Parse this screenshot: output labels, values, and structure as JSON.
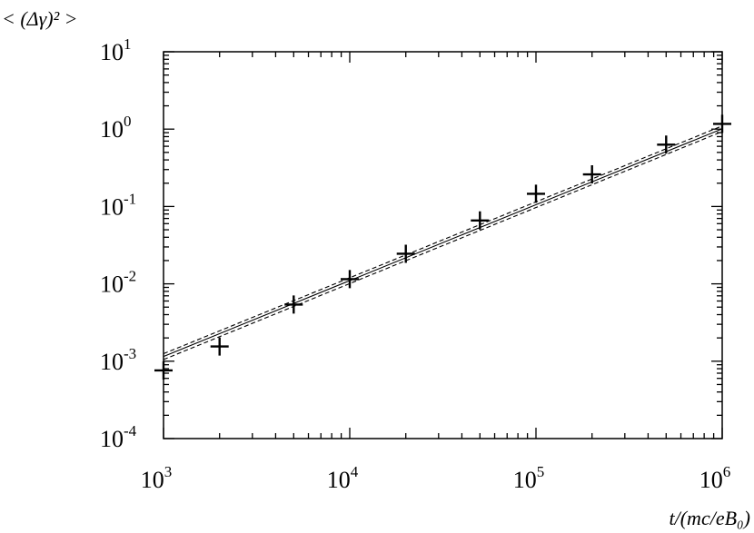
{
  "chart_data": {
    "type": "scatter",
    "ylabel": "< (Δγ)² >",
    "xlabel": "t/(mc/eB₀)",
    "log_x": true,
    "log_y": true,
    "xlim": [
      1000,
      1000000
    ],
    "ylim": [
      0.0001,
      10
    ],
    "xticks": [
      {
        "value": 1000,
        "label": "10",
        "sup": "3"
      },
      {
        "value": 10000,
        "label": "10",
        "sup": "4"
      },
      {
        "value": 100000,
        "label": "10",
        "sup": "5"
      },
      {
        "value": 1000000,
        "label": "10",
        "sup": "6"
      }
    ],
    "yticks": [
      {
        "value": 0.0001,
        "label": "10",
        "sup": "-4"
      },
      {
        "value": 0.001,
        "label": "10",
        "sup": "-3"
      },
      {
        "value": 0.01,
        "label": "10",
        "sup": "-2"
      },
      {
        "value": 0.1,
        "label": "10",
        "sup": "-1"
      },
      {
        "value": 1,
        "label": "10",
        "sup": "0"
      },
      {
        "value": 10,
        "label": "10",
        "sup": "1"
      }
    ],
    "x": [
      1000,
      2000,
      5000,
      10000,
      20000,
      50000,
      100000,
      200000,
      500000,
      1000000
    ],
    "values": [
      0.00076,
      0.00155,
      0.0054,
      0.0115,
      0.0245,
      0.066,
      0.146,
      0.26,
      0.63,
      1.17
    ],
    "color": "#000000",
    "lines": [
      {
        "x": [
          1000,
          1000000
        ],
        "values": [
          0.00115,
          1.01
        ],
        "dash": false
      },
      {
        "x": [
          1000,
          1000000
        ],
        "values": [
          0.00125,
          1.1
        ],
        "dash": true
      },
      {
        "x": [
          1000,
          1000000
        ],
        "values": [
          0.00105,
          0.93
        ],
        "dash": true
      }
    ]
  }
}
